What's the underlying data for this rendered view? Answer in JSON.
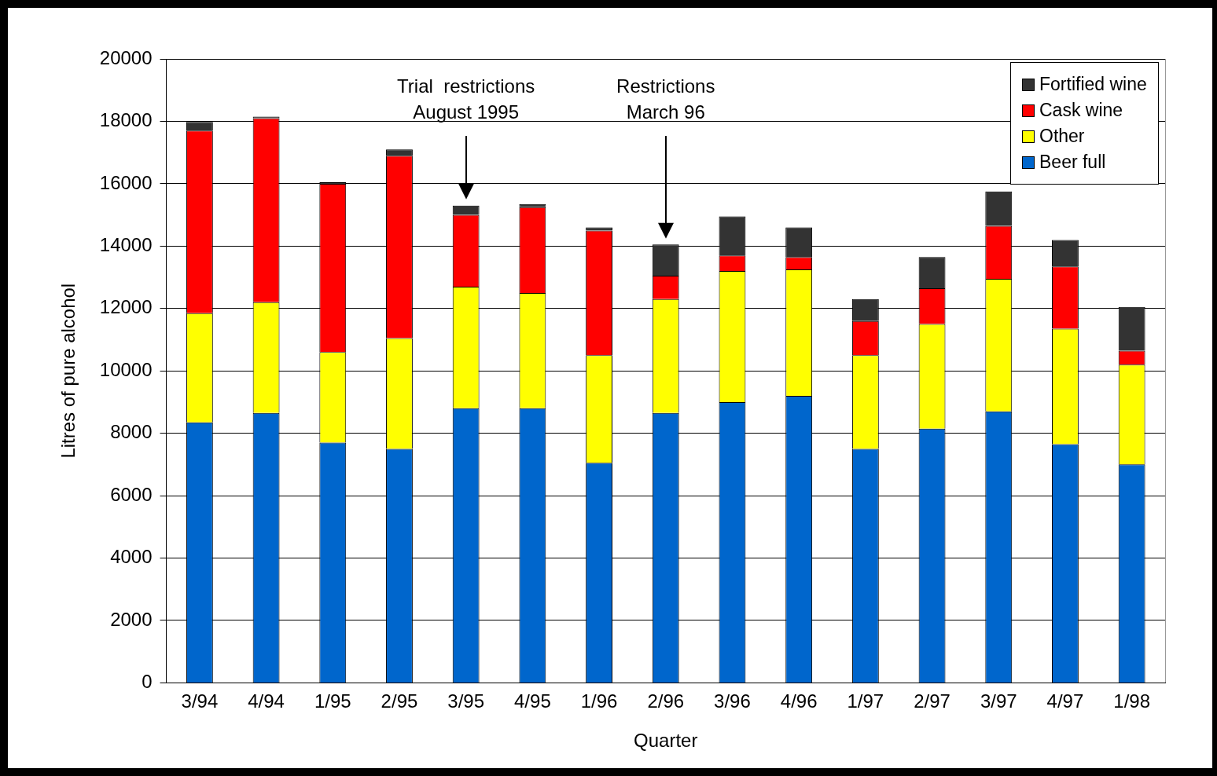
{
  "chart_data": {
    "type": "bar",
    "stacked": true,
    "xlabel": "Quarter",
    "ylabel": "Litres of pure alcohol",
    "categories": [
      "3/94",
      "4/94",
      "1/95",
      "2/95",
      "3/95",
      "4/95",
      "1/96",
      "2/96",
      "3/96",
      "4/96",
      "1/97",
      "2/97",
      "3/97",
      "4/97",
      "1/98"
    ],
    "series": [
      {
        "name": "Beer full",
        "color": "#0066cc",
        "values": [
          8350,
          8650,
          7700,
          7500,
          8800,
          8800,
          7050,
          8650,
          9000,
          9200,
          7500,
          8150,
          8700,
          7650,
          7000
        ]
      },
      {
        "name": "Other",
        "color": "#ffff00",
        "values": [
          3500,
          3550,
          2900,
          3550,
          3900,
          3700,
          3450,
          3650,
          4200,
          4050,
          3000,
          3350,
          4250,
          3700,
          3200
        ]
      },
      {
        "name": "Cask wine",
        "color": "#ff0000",
        "values": [
          5850,
          5900,
          5400,
          5850,
          2300,
          2750,
          4000,
          750,
          500,
          400,
          1100,
          1150,
          1700,
          2000,
          450
        ]
      },
      {
        "name": "Fortified wine",
        "color": "#333333",
        "values": [
          280,
          50,
          50,
          200,
          300,
          100,
          100,
          1000,
          1250,
          950,
          700,
          1000,
          1100,
          850,
          1400
        ]
      }
    ],
    "ylim": [
      0,
      20000
    ],
    "yticks": [
      0,
      2000,
      4000,
      6000,
      8000,
      10000,
      12000,
      14000,
      16000,
      18000,
      20000
    ],
    "grid": "y",
    "legend": "top right",
    "annotations": [
      "Trial  restrictions\nAugust 1995",
      "Restrictions\nMarch 96"
    ]
  }
}
